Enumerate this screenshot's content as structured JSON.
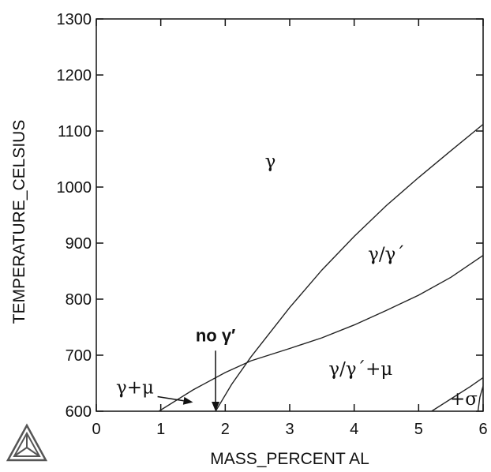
{
  "chart_data": {
    "type": "line",
    "title": "",
    "xlabel": "MASS_PERCENT AL",
    "ylabel": "TEMPERATURE_CELSIUS",
    "xlim": [
      0,
      6
    ],
    "ylim": [
      600,
      1300
    ],
    "x_ticks": [
      "0",
      "1",
      "2",
      "3",
      "4",
      "5",
      "6"
    ],
    "y_ticks": [
      "600",
      "700",
      "800",
      "900",
      "1000",
      "1100",
      "1200",
      "1300"
    ],
    "grid": false,
    "series": [
      {
        "x": [
          1.85,
          2.1,
          2.4,
          3.0,
          3.5,
          4.0,
          4.5,
          5.0,
          5.5,
          6.0
        ],
        "y": [
          600,
          648,
          697,
          785,
          852,
          912,
          967,
          1017,
          1065,
          1112
        ]
      },
      {
        "x": [
          0.97,
          1.5,
          2.0,
          2.4,
          3.0,
          3.5,
          4.0,
          4.5,
          5.0,
          5.5,
          6.0
        ],
        "y": [
          600,
          638,
          669,
          690,
          712,
          731,
          754,
          780,
          807,
          839,
          878
        ]
      },
      {
        "x": [
          5.2,
          5.5,
          5.8,
          6.0
        ],
        "y": [
          600,
          622,
          644,
          660
        ]
      },
      {
        "x": [
          5.92,
          5.95,
          6.0
        ],
        "y": [
          600,
          625,
          645
        ]
      }
    ],
    "annotations": [
      {
        "text": "γ",
        "x": 2.7,
        "y": 1035
      },
      {
        "text": "γ/γ´",
        "x": 4.5,
        "y": 870
      },
      {
        "text": "γ/γ´+μ",
        "x": 4.1,
        "y": 665
      },
      {
        "text": "γ+μ",
        "x": 0.6,
        "y": 632
      },
      {
        "text": "no γ′",
        "x": 1.85,
        "y": 725,
        "arrow_to": [
          1.85,
          600
        ]
      },
      {
        "text": "+σ",
        "x": 5.7,
        "y": 611
      }
    ],
    "pointer_arrows": [
      {
        "from": [
          0.95,
          626
        ],
        "to": [
          1.5,
          616
        ]
      }
    ]
  }
}
